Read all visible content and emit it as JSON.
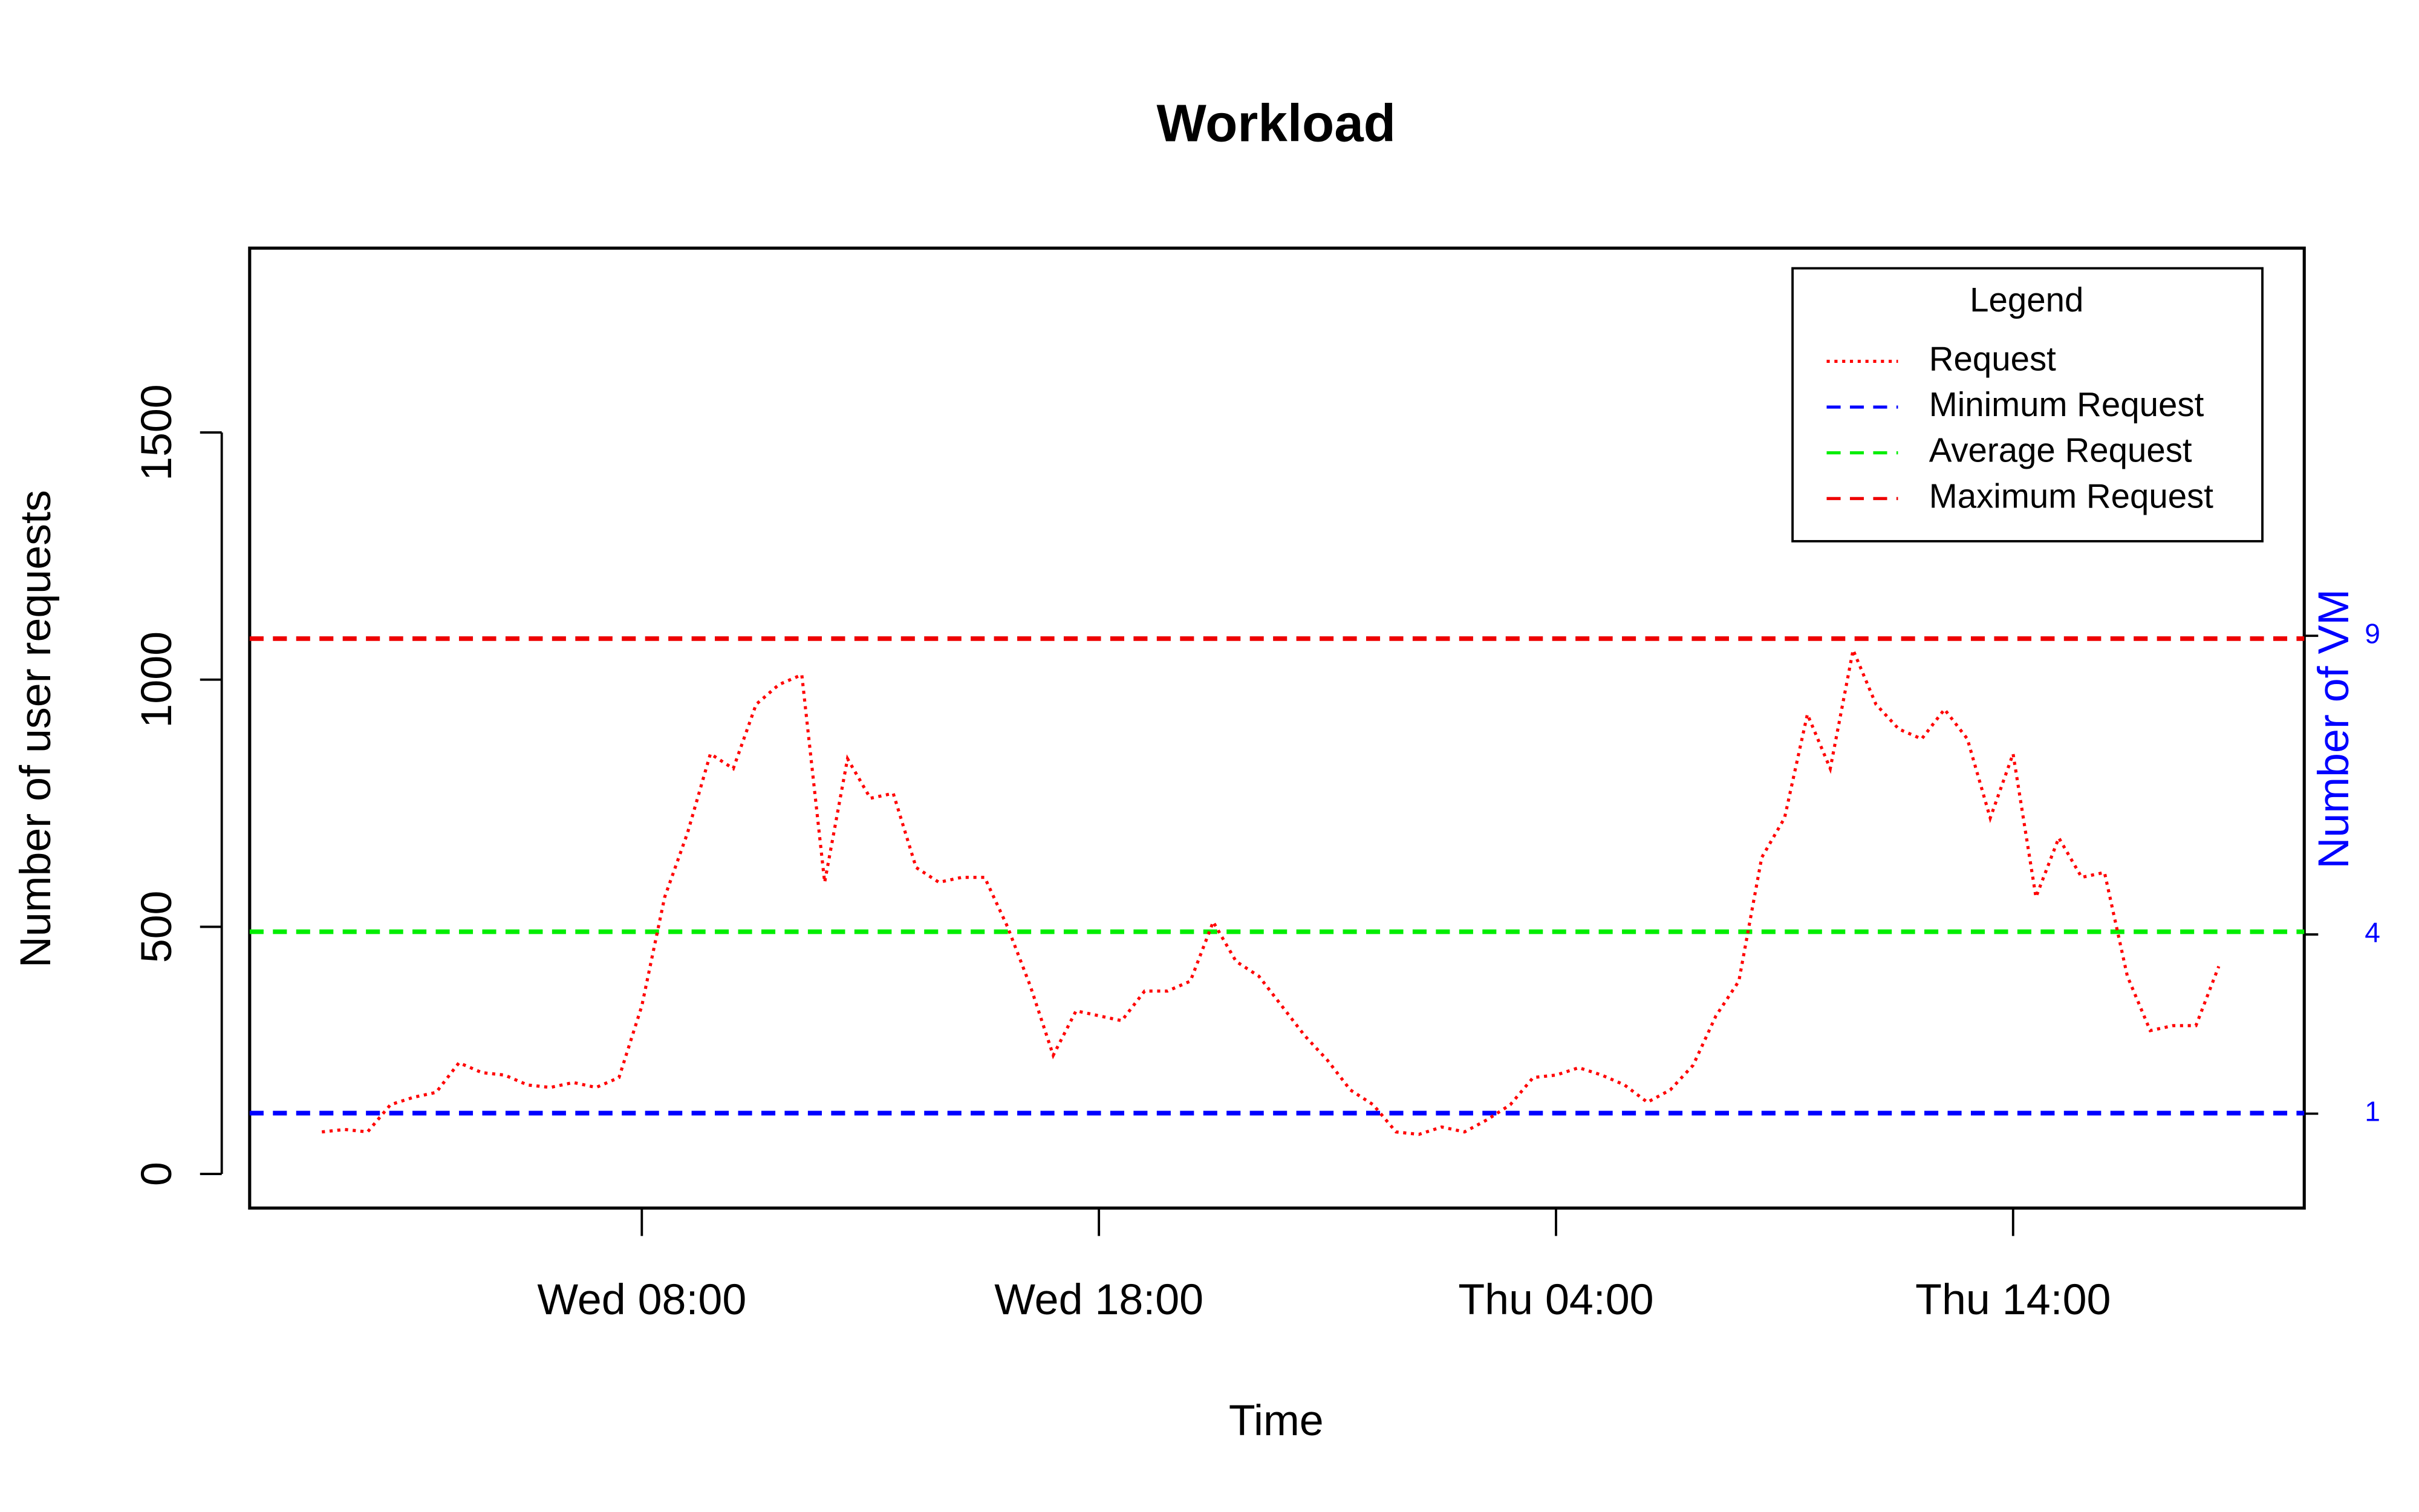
{
  "chart_data": {
    "type": "line",
    "title": "Workload",
    "xlabel": "Time",
    "ylabel": "Number of user requests",
    "y2label": "Number of VM",
    "legend_title": "Legend",
    "legend": "top-right",
    "x": [
      1,
      1.5,
      2,
      2.5,
      3,
      3.5,
      4,
      4.5,
      5,
      5.5,
      6,
      6.5,
      7,
      7.5,
      8,
      8.5,
      9,
      9.5,
      10,
      10.5,
      11,
      11.5,
      12,
      12.5,
      13,
      13.5,
      14,
      14.5,
      15,
      15.5,
      16,
      16.5,
      17,
      17.5,
      18,
      18.5,
      19,
      19.5,
      20,
      20.5,
      21,
      21.5,
      22,
      22.5,
      23,
      23.5,
      24,
      24.5,
      25,
      25.5,
      26,
      26.5,
      27,
      27.5,
      28,
      28.5,
      29,
      29.5,
      30,
      30.5,
      31,
      31.5,
      32,
      32.5,
      33,
      33.5,
      34,
      34.5,
      35,
      35.5,
      36,
      36.5,
      37,
      37.5,
      38,
      38.5,
      39,
      39.5,
      40,
      40.5,
      41,
      41.5,
      42,
      42.5
    ],
    "series": [
      {
        "name": "Request",
        "color": "#ff0000",
        "dash": "dotted",
        "values": [
          85,
          90,
          85,
          140,
          155,
          165,
          225,
          205,
          200,
          180,
          175,
          185,
          175,
          195,
          340,
          560,
          690,
          850,
          820,
          950,
          990,
          1010,
          590,
          840,
          760,
          770,
          620,
          590,
          600,
          600,
          500,
          380,
          240,
          330,
          320,
          310,
          370,
          370,
          390,
          510,
          430,
          400,
          340,
          280,
          230,
          170,
          140,
          85,
          80,
          95,
          85,
          110,
          140,
          195,
          200,
          215,
          200,
          180,
          145,
          170,
          220,
          320,
          390,
          640,
          720,
          930,
          820,
          1060,
          950,
          900,
          880,
          940,
          880,
          720,
          850,
          560,
          680,
          600,
          610,
          400,
          290,
          300,
          300,
          420
        ]
      }
    ],
    "reference_lines": [
      {
        "name": "Minimum Request",
        "color": "#0000ff",
        "value": 123
      },
      {
        "name": "Average Request",
        "color": "#00ee00",
        "value": 490
      },
      {
        "name": "Maximum Request",
        "color": "#ee0000",
        "value": 1083
      }
    ],
    "xlim": [
      -0.58,
      44.37
    ],
    "xticks": [
      {
        "value": 8,
        "label": "Wed 08:00"
      },
      {
        "value": 18,
        "label": "Wed 18:00"
      },
      {
        "value": 28,
        "label": "Thu 04:00"
      },
      {
        "value": 38,
        "label": "Thu 14:00"
      }
    ],
    "ylim": [
      -69,
      1873
    ],
    "yticks": [
      0,
      500,
      1000,
      1500
    ],
    "y2lim": [
      -0.58,
      15.49
    ],
    "y2ticks": [
      1,
      4,
      9
    ],
    "y2color": "#0000ff"
  }
}
